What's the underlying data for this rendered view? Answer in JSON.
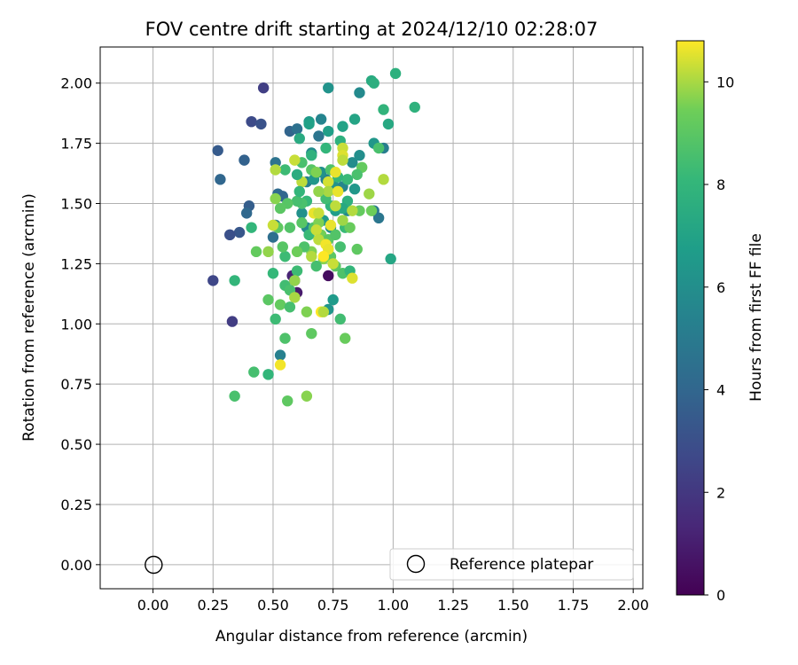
{
  "chart_data": {
    "type": "scatter",
    "title": "FOV centre drift starting at 2024/12/10 02:28:07",
    "xlabel": "Angular distance from reference (arcmin)",
    "ylabel": "Rotation from reference (arcmin)",
    "xlim": [
      -0.22,
      2.04
    ],
    "ylim": [
      -0.1,
      2.15
    ],
    "xticks": [
      0.0,
      0.25,
      0.5,
      0.75,
      1.0,
      1.25,
      1.5,
      1.75,
      2.0
    ],
    "xtick_labels": [
      "0.00",
      "0.25",
      "0.50",
      "0.75",
      "1.00",
      "1.25",
      "1.50",
      "1.75",
      "2.00"
    ],
    "yticks": [
      0.0,
      0.25,
      0.5,
      0.75,
      1.0,
      1.25,
      1.5,
      1.75,
      2.0
    ],
    "ytick_labels": [
      "0.00",
      "0.25",
      "0.50",
      "0.75",
      "1.00",
      "1.25",
      "1.50",
      "1.75",
      "2.00"
    ],
    "grid": true,
    "colormap": "viridis",
    "colorbar": {
      "label": "Hours from first FF file",
      "range": [
        0,
        10.8
      ],
      "ticks": [
        0,
        2,
        4,
        6,
        8,
        10
      ],
      "tick_labels": [
        "0",
        "2",
        "4",
        "6",
        "8",
        "10"
      ]
    },
    "reference_point": {
      "x": 0.0,
      "y": 0.0,
      "marker": "open-circle",
      "color": "#000000"
    },
    "legend": {
      "position": "lower-right",
      "entries": [
        "Reference platepar"
      ]
    },
    "points": [
      [
        0.46,
        1.98,
        2.3
      ],
      [
        0.41,
        1.84,
        2.8
      ],
      [
        0.45,
        1.83,
        3.1
      ],
      [
        0.27,
        1.72,
        3.5
      ],
      [
        0.38,
        1.68,
        3.8
      ],
      [
        0.28,
        1.6,
        4.0
      ],
      [
        0.4,
        1.49,
        3.6
      ],
      [
        0.39,
        1.46,
        4.1
      ],
      [
        0.36,
        1.38,
        3.3
      ],
      [
        0.32,
        1.37,
        3.0
      ],
      [
        0.25,
        1.18,
        2.6
      ],
      [
        0.33,
        1.01,
        2.2
      ],
      [
        0.57,
        1.8,
        3.9
      ],
      [
        0.6,
        1.81,
        4.5
      ],
      [
        0.51,
        1.67,
        4.6
      ],
      [
        0.52,
        1.54,
        4.2
      ],
      [
        0.54,
        1.53,
        4.0
      ],
      [
        0.51,
        1.41,
        5.0
      ],
      [
        0.5,
        1.36,
        4.4
      ],
      [
        0.58,
        1.2,
        1.2
      ],
      [
        0.59,
        1.18,
        0.6
      ],
      [
        0.6,
        1.13,
        0.9
      ],
      [
        0.73,
        1.2,
        0.4
      ],
      [
        0.69,
        1.78,
        4.7
      ],
      [
        0.73,
        1.98,
        6.2
      ],
      [
        0.86,
        1.96,
        5.8
      ],
      [
        0.65,
        1.84,
        6.6
      ],
      [
        0.7,
        1.85,
        5.5
      ],
      [
        0.66,
        1.71,
        5.9
      ],
      [
        0.64,
        1.59,
        5.2
      ],
      [
        0.72,
        1.6,
        5.3
      ],
      [
        0.7,
        1.63,
        6.1
      ],
      [
        0.67,
        1.6,
        6.4
      ],
      [
        0.75,
        1.58,
        6.2
      ],
      [
        0.79,
        1.57,
        5.6
      ],
      [
        0.83,
        1.67,
        5.9
      ],
      [
        0.86,
        1.7,
        6.0
      ],
      [
        0.84,
        1.56,
        6.4
      ],
      [
        0.81,
        1.47,
        5.7
      ],
      [
        0.76,
        1.47,
        6.7
      ],
      [
        0.64,
        1.4,
        5.8
      ],
      [
        0.62,
        1.46,
        6.1
      ],
      [
        0.71,
        1.43,
        6.6
      ],
      [
        0.74,
        1.4,
        6.0
      ],
      [
        0.92,
        1.47,
        4.9
      ],
      [
        0.94,
        1.44,
        4.8
      ],
      [
        0.96,
        1.73,
        5.2
      ],
      [
        0.99,
        1.27,
        7.2
      ],
      [
        0.53,
        0.87,
        5.3
      ],
      [
        0.73,
        1.06,
        6.3
      ],
      [
        0.75,
        1.1,
        6.6
      ],
      [
        0.91,
        2.01,
        7.4
      ],
      [
        0.92,
        2.0,
        7.6
      ],
      [
        1.01,
        2.04,
        7.7
      ],
      [
        1.09,
        1.9,
        7.8
      ],
      [
        0.96,
        1.89,
        7.9
      ],
      [
        0.98,
        1.83,
        7.3
      ],
      [
        0.84,
        1.85,
        7.1
      ],
      [
        0.79,
        1.82,
        7.0
      ],
      [
        0.73,
        1.8,
        6.8
      ],
      [
        0.61,
        1.77,
        7.4
      ],
      [
        0.65,
        1.83,
        6.9
      ],
      [
        0.92,
        1.75,
        6.4
      ],
      [
        0.72,
        1.73,
        8.0
      ],
      [
        0.78,
        1.76,
        7.7
      ],
      [
        0.55,
        1.64,
        8.3
      ],
      [
        0.62,
        1.67,
        8.6
      ],
      [
        0.66,
        1.64,
        8.9
      ],
      [
        0.74,
        1.64,
        8.7
      ],
      [
        0.87,
        1.65,
        9.2
      ],
      [
        0.85,
        1.62,
        8.6
      ],
      [
        0.81,
        1.6,
        8.2
      ],
      [
        0.77,
        1.61,
        8.0
      ],
      [
        0.81,
        1.51,
        7.7
      ],
      [
        0.79,
        1.48,
        7.3
      ],
      [
        0.74,
        1.49,
        7.9
      ],
      [
        0.72,
        1.52,
        8.4
      ],
      [
        0.64,
        1.51,
        8.1
      ],
      [
        0.62,
        1.5,
        8.6
      ],
      [
        0.6,
        1.51,
        8.5
      ],
      [
        0.56,
        1.5,
        8.9
      ],
      [
        0.53,
        1.48,
        9.0
      ],
      [
        0.52,
        1.4,
        9.1
      ],
      [
        0.57,
        1.4,
        8.8
      ],
      [
        0.62,
        1.42,
        8.9
      ],
      [
        0.65,
        1.37,
        8.2
      ],
      [
        0.67,
        1.4,
        8.8
      ],
      [
        0.69,
        1.42,
        9.6
      ],
      [
        0.7,
        1.37,
        9.5
      ],
      [
        0.73,
        1.35,
        9.0
      ],
      [
        0.76,
        1.37,
        8.8
      ],
      [
        0.8,
        1.4,
        8.2
      ],
      [
        0.82,
        1.4,
        9.3
      ],
      [
        0.78,
        1.32,
        8.5
      ],
      [
        0.74,
        1.28,
        9.0
      ],
      [
        0.71,
        1.27,
        9.7
      ],
      [
        0.66,
        1.3,
        9.6
      ],
      [
        0.63,
        1.32,
        8.7
      ],
      [
        0.6,
        1.3,
        9.4
      ],
      [
        0.55,
        1.28,
        8.3
      ],
      [
        0.54,
        1.32,
        8.9
      ],
      [
        0.48,
        1.3,
        9.8
      ],
      [
        0.43,
        1.3,
        9.2
      ],
      [
        0.5,
        1.21,
        8.1
      ],
      [
        0.55,
        1.16,
        8.4
      ],
      [
        0.57,
        1.14,
        8.6
      ],
      [
        0.6,
        1.22,
        8.3
      ],
      [
        0.68,
        1.24,
        8.5
      ],
      [
        0.76,
        1.24,
        9.0
      ],
      [
        0.79,
        1.21,
        8.7
      ],
      [
        0.82,
        1.22,
        8.0
      ],
      [
        0.85,
        1.31,
        9.1
      ],
      [
        0.86,
        1.47,
        9.2
      ],
      [
        0.91,
        1.47,
        9.4
      ],
      [
        0.9,
        1.54,
        9.9
      ],
      [
        0.96,
        1.6,
        10.1
      ],
      [
        0.94,
        1.73,
        8.6
      ],
      [
        0.79,
        1.73,
        10.3
      ],
      [
        0.79,
        1.7,
        10.5
      ],
      [
        0.79,
        1.68,
        10.2
      ],
      [
        0.76,
        1.63,
        10.6
      ],
      [
        0.73,
        1.59,
        10.4
      ],
      [
        0.73,
        1.55,
        10.0
      ],
      [
        0.77,
        1.55,
        10.6
      ],
      [
        0.69,
        1.55,
        9.8
      ],
      [
        0.68,
        1.63,
        9.6
      ],
      [
        0.62,
        1.59,
        10.2
      ],
      [
        0.59,
        1.68,
        10.3
      ],
      [
        0.51,
        1.64,
        10.1
      ],
      [
        0.51,
        1.52,
        9.7
      ],
      [
        0.5,
        1.41,
        10.3
      ],
      [
        0.67,
        1.46,
        10.6
      ],
      [
        0.69,
        1.46,
        10.3
      ],
      [
        0.76,
        1.49,
        10.2
      ],
      [
        0.83,
        1.47,
        10.1
      ],
      [
        0.79,
        1.43,
        9.9
      ],
      [
        0.74,
        1.41,
        10.6
      ],
      [
        0.68,
        1.39,
        10.3
      ],
      [
        0.69,
        1.35,
        10.2
      ],
      [
        0.72,
        1.33,
        10.7
      ],
      [
        0.73,
        1.31,
        10.6
      ],
      [
        0.71,
        1.28,
        10.8
      ],
      [
        0.66,
        1.28,
        10.1
      ],
      [
        0.75,
        1.25,
        10.3
      ],
      [
        0.83,
        1.19,
        10.5
      ],
      [
        0.59,
        1.18,
        9.8
      ],
      [
        0.59,
        1.11,
        10.0
      ],
      [
        0.7,
        1.05,
        10.8
      ],
      [
        0.71,
        1.05,
        10.1
      ],
      [
        0.53,
        0.83,
        10.7
      ],
      [
        0.64,
        1.05,
        9.6
      ],
      [
        0.53,
        1.08,
        9.2
      ],
      [
        0.48,
        1.1,
        9.0
      ],
      [
        0.57,
        1.07,
        8.5
      ],
      [
        0.51,
        1.02,
        8.3
      ],
      [
        0.34,
        1.18,
        8.0
      ],
      [
        0.41,
        1.4,
        8.0
      ],
      [
        0.78,
        1.02,
        8.4
      ],
      [
        0.66,
        0.96,
        9.1
      ],
      [
        0.55,
        0.94,
        8.7
      ],
      [
        0.8,
        0.94,
        9.3
      ],
      [
        0.42,
        0.8,
        8.5
      ],
      [
        0.48,
        0.79,
        8.0
      ],
      [
        0.34,
        0.7,
        8.6
      ],
      [
        0.56,
        0.68,
        9.1
      ],
      [
        0.64,
        0.7,
        9.7
      ],
      [
        0.6,
        1.62,
        7.5
      ],
      [
        0.66,
        1.7,
        7.8
      ],
      [
        0.61,
        1.55,
        8.0
      ]
    ]
  }
}
